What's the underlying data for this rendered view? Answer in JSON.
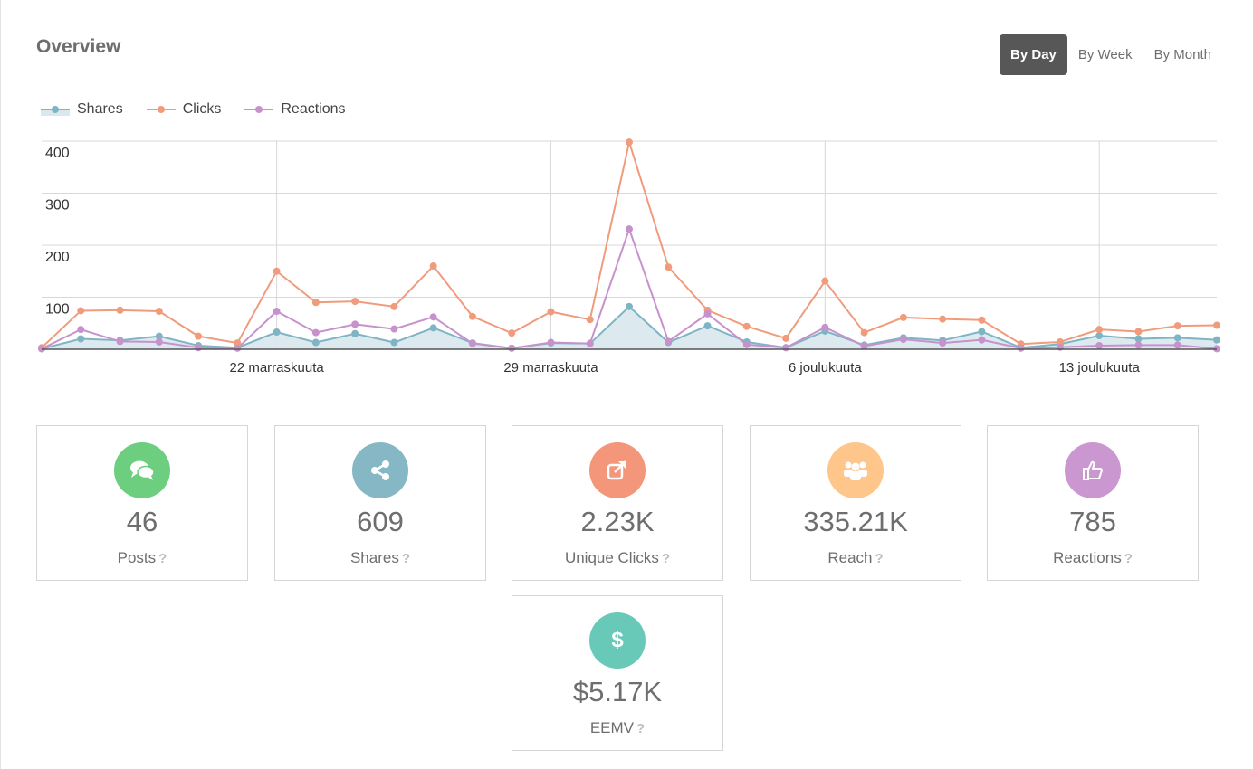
{
  "header": {
    "title": "Overview"
  },
  "period_toggle": {
    "options": [
      "By Day",
      "By Week",
      "By Month"
    ],
    "selected": "By Day"
  },
  "colors": {
    "shares": "#7fb4c4",
    "clicks": "#f09c7c",
    "reactions": "#c792cc",
    "grid": "#d8d8d8",
    "area": "#d8e8ee"
  },
  "chart_data": {
    "type": "line",
    "x_tick_labels": [
      "22 marraskuuta",
      "29 marraskuuta",
      "6 joulukuuta",
      "13 joulukuuta"
    ],
    "x_tick_indices": [
      6,
      13,
      20,
      27
    ],
    "y_ticks": [
      100,
      200,
      300,
      400
    ],
    "ylim": [
      0,
      400
    ],
    "grid": true,
    "legend_position": "top-left",
    "series": [
      {
        "name": "Shares",
        "key": "shares",
        "area": true,
        "values": [
          1,
          20,
          17,
          25,
          7,
          3,
          33,
          13,
          30,
          13,
          41,
          12,
          2,
          12,
          11,
          82,
          13,
          45,
          14,
          3,
          35,
          8,
          22,
          17,
          34,
          3,
          10,
          26,
          20,
          22,
          18
        ]
      },
      {
        "name": "Clicks",
        "key": "clicks",
        "values": [
          3,
          74,
          75,
          73,
          25,
          12,
          150,
          90,
          92,
          82,
          160,
          63,
          31,
          72,
          57,
          398,
          158,
          75,
          44,
          21,
          131,
          32,
          61,
          58,
          56,
          10,
          14,
          38,
          34,
          45,
          46
        ]
      },
      {
        "name": "Reactions",
        "key": "reactions",
        "values": [
          1,
          38,
          15,
          14,
          3,
          2,
          73,
          32,
          48,
          39,
          62,
          11,
          2,
          13,
          11,
          231,
          15,
          68,
          9,
          3,
          42,
          6,
          19,
          12,
          18,
          2,
          4,
          7,
          8,
          8,
          1
        ]
      }
    ]
  },
  "cards": [
    {
      "key": "posts",
      "value": "46",
      "label": "Posts",
      "help": "?",
      "color": "#6cce7e",
      "icon": "chat-bubbles-icon"
    },
    {
      "key": "shares",
      "value": "609",
      "label": "Shares",
      "help": "?",
      "color": "#86b7c4",
      "icon": "share-icon"
    },
    {
      "key": "clicks",
      "value": "2.23K",
      "label": "Unique Clicks",
      "help": "?",
      "color": "#f3967a",
      "icon": "external-link-icon"
    },
    {
      "key": "reach",
      "value": "335.21K",
      "label": "Reach",
      "help": "?",
      "color": "#fec68a",
      "icon": "users-icon"
    },
    {
      "key": "reactions",
      "value": "785",
      "label": "Reactions",
      "help": "?",
      "color": "#cb97d0",
      "icon": "thumbs-up-icon"
    },
    {
      "key": "eemv",
      "value": "$5.17K",
      "label": "EEMV",
      "help": "?",
      "color": "#68c9b8",
      "icon": "dollar-icon",
      "glyph": "$"
    }
  ]
}
